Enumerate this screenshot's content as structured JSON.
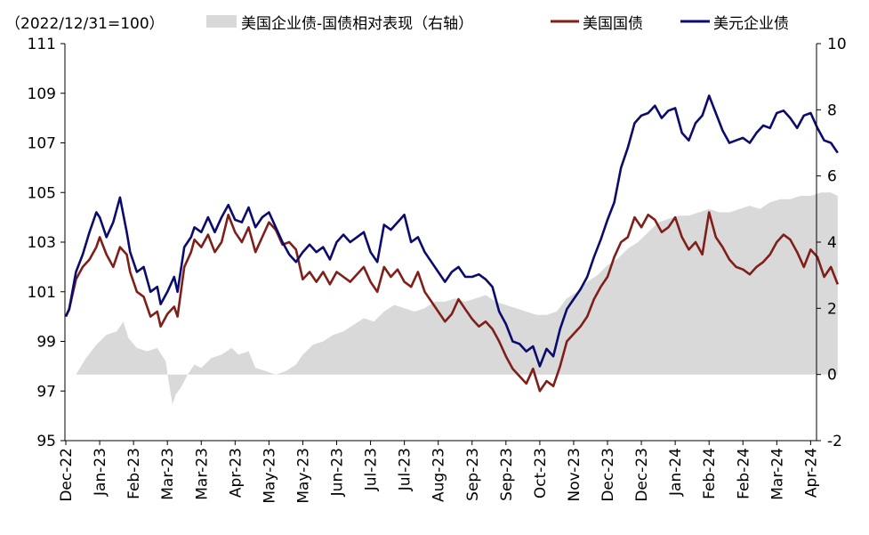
{
  "chart_data": {
    "type": "line",
    "subtitle": "（2022/12/31=100）",
    "x_tick_labels": [
      "Dec-22",
      "Jan-23",
      "Feb-23",
      "Mar-23",
      "Mar-23",
      "Apr-23",
      "May-23",
      "May-23",
      "Jun-23",
      "Jul-23",
      "Jul-23",
      "Aug-23",
      "Sep-23",
      "Sep-23",
      "Oct-23",
      "Nov-23",
      "Dec-23",
      "Dec-23",
      "Jan-24",
      "Feb-24",
      "Feb-24",
      "Mar-24",
      "Apr-24"
    ],
    "y_left": {
      "min": 95,
      "max": 111,
      "ticks": [
        95,
        97,
        99,
        101,
        103,
        105,
        107,
        109,
        111
      ]
    },
    "y_right": {
      "min": -2,
      "max": 10,
      "ticks": [
        -2,
        0,
        2,
        4,
        6,
        8,
        10
      ]
    },
    "legend": {
      "placement": "top",
      "items": [
        "美国企业债-国债相对表现（右轴）",
        "美国国债",
        "美元企业债"
      ]
    },
    "colors": {
      "area": "#d9d9d9",
      "treasury": "#7f1f1a",
      "corporate": "#0b0b6e"
    },
    "x_index": [
      0,
      1,
      2,
      3,
      4,
      5,
      6,
      7,
      8,
      9,
      10,
      11,
      12,
      13,
      14,
      15,
      16,
      17,
      18,
      19,
      20,
      21,
      22
    ],
    "series": [
      {
        "name": "美国企业债-国债相对表现（右轴）",
        "axis": "right",
        "kind": "area",
        "x": [
          0,
          0.3,
          0.6,
          0.9,
          1.2,
          1.5,
          1.7,
          1.85,
          2.1,
          2.4,
          2.7,
          2.95,
          3.05,
          3.15,
          3.25,
          3.4,
          3.6,
          3.8,
          4.0,
          4.3,
          4.6,
          4.9,
          5.1,
          5.4,
          5.6,
          5.9,
          6.2,
          6.5,
          6.8,
          7.0,
          7.3,
          7.6,
          7.9,
          8.2,
          8.5,
          8.8,
          9.1,
          9.4,
          9.7,
          10.0,
          10.3,
          10.6,
          10.9,
          11.2,
          11.5,
          11.8,
          12.1,
          12.4,
          12.7,
          13.0,
          13.3,
          13.6,
          13.9,
          14.2,
          14.5,
          14.8,
          15.1,
          15.4,
          15.7,
          16.0,
          16.3,
          16.6,
          16.9,
          17.2,
          17.5,
          17.8,
          18.1,
          18.4,
          18.7,
          19.0,
          19.3,
          19.6,
          19.9,
          20.2,
          20.5,
          20.8,
          21.1,
          21.4,
          21.7,
          22.0,
          22.3,
          22.6,
          22.8
        ],
        "values": [
          0,
          0,
          0.5,
          0.9,
          1.2,
          1.3,
          1.6,
          1.1,
          0.8,
          0.7,
          0.8,
          0.4,
          -0.3,
          -0.9,
          -0.6,
          -0.4,
          0,
          0.3,
          0.2,
          0.5,
          0.6,
          0.8,
          0.6,
          0.7,
          0.2,
          0.1,
          0,
          0.1,
          0.3,
          0.6,
          0.9,
          1.0,
          1.2,
          1.3,
          1.5,
          1.7,
          1.6,
          1.9,
          2.1,
          2.0,
          1.9,
          2.0,
          2.2,
          2.2,
          2.3,
          2.2,
          2.3,
          2.4,
          2.2,
          2.1,
          2.0,
          1.9,
          1.8,
          1.8,
          1.9,
          2.3,
          2.5,
          2.8,
          3.0,
          3.3,
          3.5,
          3.8,
          4.0,
          4.3,
          4.6,
          4.7,
          4.8,
          4.8,
          4.9,
          5.0,
          4.9,
          4.9,
          5.0,
          5.1,
          5.0,
          5.2,
          5.3,
          5.3,
          5.4,
          5.4,
          5.5,
          5.5,
          5.4
        ]
      },
      {
        "name": "美国国债",
        "axis": "left",
        "kind": "line",
        "x": [
          0,
          0.1,
          0.3,
          0.5,
          0.7,
          0.9,
          1.0,
          1.2,
          1.4,
          1.6,
          1.8,
          1.9,
          2.1,
          2.3,
          2.5,
          2.7,
          2.8,
          3.0,
          3.2,
          3.3,
          3.5,
          3.7,
          3.8,
          4.0,
          4.2,
          4.4,
          4.6,
          4.8,
          5.0,
          5.2,
          5.4,
          5.6,
          5.8,
          6.0,
          6.2,
          6.4,
          6.6,
          6.8,
          7.0,
          7.2,
          7.4,
          7.6,
          7.8,
          8.0,
          8.2,
          8.4,
          8.6,
          8.8,
          9.0,
          9.2,
          9.4,
          9.6,
          9.8,
          10.0,
          10.2,
          10.4,
          10.6,
          10.8,
          11.0,
          11.2,
          11.4,
          11.6,
          11.8,
          12.0,
          12.2,
          12.4,
          12.6,
          12.8,
          13.0,
          13.2,
          13.4,
          13.6,
          13.8,
          14.0,
          14.2,
          14.4,
          14.6,
          14.8,
          15.0,
          15.2,
          15.4,
          15.6,
          15.8,
          16.0,
          16.2,
          16.4,
          16.6,
          16.8,
          17.0,
          17.2,
          17.4,
          17.6,
          17.8,
          18.0,
          18.2,
          18.4,
          18.6,
          18.8,
          19.0,
          19.2,
          19.4,
          19.6,
          19.8,
          20.0,
          20.2,
          20.4,
          20.6,
          20.8,
          21.0,
          21.2,
          21.4,
          21.6,
          21.8,
          22.0,
          22.2,
          22.4,
          22.6,
          22.8
        ],
        "values": [
          100,
          100.3,
          101.5,
          102.0,
          102.3,
          102.8,
          103.2,
          102.5,
          102.0,
          102.8,
          102.5,
          101.8,
          101.0,
          100.8,
          100.0,
          100.2,
          99.6,
          100.1,
          100.4,
          100.0,
          102.0,
          102.6,
          103.1,
          102.8,
          103.3,
          102.6,
          103.0,
          104.1,
          103.4,
          103.0,
          103.6,
          102.6,
          103.2,
          103.8,
          103.5,
          102.9,
          103.0,
          102.7,
          101.5,
          101.8,
          101.4,
          101.8,
          101.3,
          101.8,
          101.6,
          101.4,
          101.7,
          102.0,
          101.4,
          101.0,
          102.0,
          101.6,
          101.9,
          101.4,
          101.2,
          101.8,
          101.0,
          100.6,
          100.2,
          99.8,
          100.1,
          100.7,
          100.3,
          99.9,
          99.6,
          99.8,
          99.5,
          99.0,
          98.4,
          97.9,
          97.6,
          97.3,
          97.9,
          97.0,
          97.4,
          97.2,
          98.0,
          99.0,
          99.3,
          99.6,
          100.0,
          100.7,
          101.2,
          101.6,
          102.4,
          103.0,
          103.2,
          104.0,
          103.6,
          104.1,
          103.9,
          103.4,
          103.6,
          104.0,
          103.2,
          102.7,
          103.0,
          102.5,
          104.2,
          103.2,
          102.8,
          102.3,
          102.0,
          101.9,
          101.7,
          102.0,
          102.2,
          102.5,
          103.0,
          103.3,
          103.1,
          102.6,
          102.0,
          102.7,
          102.4,
          101.6,
          102.0,
          101.3
        ]
      },
      {
        "name": "美元企业债",
        "axis": "left",
        "kind": "line",
        "x": [
          0,
          0.1,
          0.3,
          0.5,
          0.7,
          0.9,
          1.0,
          1.2,
          1.4,
          1.6,
          1.8,
          1.9,
          2.1,
          2.3,
          2.5,
          2.7,
          2.8,
          3.0,
          3.2,
          3.3,
          3.5,
          3.7,
          3.8,
          4.0,
          4.2,
          4.4,
          4.6,
          4.8,
          5.0,
          5.2,
          5.4,
          5.6,
          5.8,
          6.0,
          6.2,
          6.4,
          6.6,
          6.8,
          7.0,
          7.2,
          7.4,
          7.6,
          7.8,
          8.0,
          8.2,
          8.4,
          8.6,
          8.8,
          9.0,
          9.2,
          9.4,
          9.6,
          9.8,
          10.0,
          10.2,
          10.4,
          10.6,
          10.8,
          11.0,
          11.2,
          11.4,
          11.6,
          11.8,
          12.0,
          12.2,
          12.4,
          12.6,
          12.8,
          13.0,
          13.2,
          13.4,
          13.6,
          13.8,
          14.0,
          14.2,
          14.4,
          14.6,
          14.8,
          15.0,
          15.2,
          15.4,
          15.6,
          15.8,
          16.0,
          16.2,
          16.4,
          16.6,
          16.8,
          17.0,
          17.2,
          17.4,
          17.6,
          17.8,
          18.0,
          18.2,
          18.4,
          18.6,
          18.8,
          19.0,
          19.2,
          19.4,
          19.6,
          19.8,
          20.0,
          20.2,
          20.4,
          20.6,
          20.8,
          21.0,
          21.2,
          21.4,
          21.6,
          21.8,
          22.0,
          22.2,
          22.4,
          22.6,
          22.8
        ],
        "values": [
          100,
          100.3,
          101.8,
          102.5,
          103.4,
          104.2,
          104.0,
          103.2,
          103.8,
          104.8,
          103.4,
          102.6,
          101.8,
          102.0,
          101.0,
          101.2,
          100.5,
          101.0,
          101.6,
          101.0,
          102.8,
          103.2,
          103.6,
          103.4,
          104.0,
          103.4,
          104.0,
          104.5,
          103.9,
          103.8,
          104.4,
          103.6,
          104.0,
          104.2,
          103.6,
          103.0,
          102.5,
          102.2,
          102.6,
          102.9,
          102.6,
          102.8,
          102.3,
          103.0,
          103.3,
          103.0,
          103.2,
          103.4,
          102.6,
          102.2,
          103.7,
          103.5,
          103.8,
          104.1,
          103.0,
          103.2,
          102.6,
          102.2,
          101.8,
          101.4,
          101.8,
          102.0,
          101.6,
          101.6,
          101.7,
          101.5,
          101.2,
          100.2,
          99.7,
          99.0,
          98.9,
          98.6,
          98.8,
          98.0,
          98.7,
          98.4,
          99.5,
          100.3,
          100.7,
          101.1,
          101.6,
          102.4,
          103.1,
          103.9,
          104.6,
          106.0,
          106.8,
          107.8,
          108.1,
          108.2,
          108.5,
          108.0,
          108.3,
          108.4,
          107.4,
          107.1,
          107.8,
          108.1,
          108.9,
          108.2,
          107.5,
          107.0,
          107.1,
          107.2,
          107.0,
          107.4,
          107.7,
          107.6,
          108.2,
          108.3,
          108.0,
          107.6,
          108.1,
          108.2,
          107.6,
          107.1,
          107.0,
          106.6
        ]
      }
    ]
  }
}
